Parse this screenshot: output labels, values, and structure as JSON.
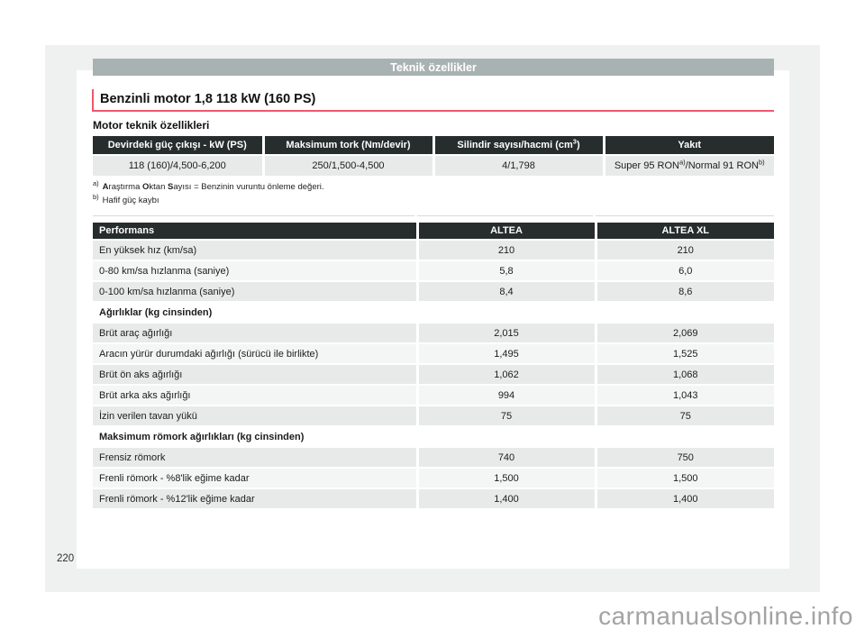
{
  "titlebar": {
    "label": "Teknik özellikler"
  },
  "heading": {
    "title": "Benzinli motor 1,8 118 kW (160 PS)"
  },
  "subheading": "Motor teknik özellikleri",
  "engine_table": {
    "headers": [
      {
        "text": "Devirdeki güç çıkışı - kW (PS)"
      },
      {
        "text": "Maksimum tork (Nm/devir)"
      },
      {
        "text": "Silindir sayısı/hacmi (cm",
        "sup": "3",
        "suffix": ")"
      },
      {
        "text": "Yakıt"
      }
    ],
    "row": [
      {
        "text": "118 (160)/4,500-6,200"
      },
      {
        "text": "250/1,500-4,500"
      },
      {
        "text": "4/1,798"
      },
      {
        "text": "Super 95 RON",
        "sup": "a)",
        "suffix": "/Normal 91 RON",
        "sup2": "b)"
      }
    ]
  },
  "footnotes": [
    {
      "marker": "a)",
      "parts": [
        {
          "b": "A"
        },
        {
          "t": "raştırma "
        },
        {
          "b": "O"
        },
        {
          "t": "ktan "
        },
        {
          "b": "S"
        },
        {
          "t": "ayısı = Benzinin vuruntu önleme değeri."
        }
      ]
    },
    {
      "marker": "b)",
      "parts": [
        {
          "t": "Hafif güç kaybı"
        }
      ]
    }
  ],
  "performance_table": {
    "columns": [
      "Performans",
      "ALTEA",
      "ALTEA XL"
    ],
    "rows": [
      {
        "type": "data",
        "label": "En yüksek hız (km/sa)",
        "values": [
          "210",
          "210"
        ]
      },
      {
        "type": "data",
        "label": "0-80 km/sa hızlanma (saniye)",
        "values": [
          "5,8",
          "6,0"
        ]
      },
      {
        "type": "data",
        "label": "0-100 km/sa hızlanma (saniye)",
        "values": [
          "8,4",
          "8,6"
        ]
      },
      {
        "type": "section",
        "label": "Ağırlıklar (kg cinsinden)"
      },
      {
        "type": "data",
        "label": "Brüt araç ağırlığı",
        "values": [
          "2,015",
          "2,069"
        ]
      },
      {
        "type": "data",
        "label": "Aracın yürür durumdaki ağırlığı (sürücü ile birlikte)",
        "values": [
          "1,495",
          "1,525"
        ]
      },
      {
        "type": "data",
        "label": "Brüt ön aks ağırlığı",
        "values": [
          "1,062",
          "1,068"
        ]
      },
      {
        "type": "data",
        "label": "Brüt arka aks ağırlığı",
        "values": [
          "994",
          "1,043"
        ]
      },
      {
        "type": "data",
        "label": "İzin verilen tavan yükü",
        "values": [
          "75",
          "75"
        ]
      },
      {
        "type": "section",
        "label": "Maksimum römork ağırlıkları (kg cinsinden)"
      },
      {
        "type": "data",
        "label": "Frensiz römork",
        "values": [
          "740",
          "750"
        ]
      },
      {
        "type": "data",
        "label": "Frenli römork - %8'lik eğime kadar",
        "values": [
          "1,500",
          "1,500"
        ]
      },
      {
        "type": "data",
        "label": "Frenli römork - %12'lik eğime kadar",
        "values": [
          "1,400",
          "1,400"
        ]
      }
    ]
  },
  "page_number": "220",
  "watermark": "carmanualsonline.info",
  "colors": {
    "page_bg": "#eff1f1",
    "bar_bg": "#a9b2b2",
    "table_header_bg": "#272c2c",
    "row_odd": "#e8eaea",
    "row_even": "#f4f5f5",
    "accent_red": "#f0586c",
    "watermark_gray": "#a3a3a3"
  }
}
